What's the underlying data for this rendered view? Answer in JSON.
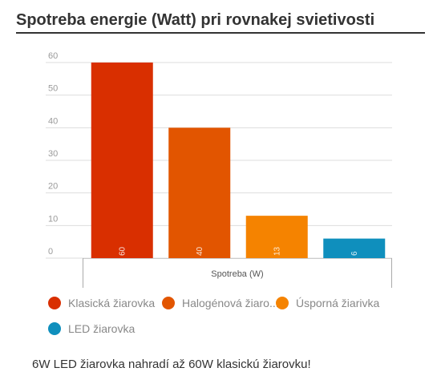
{
  "title": "Spotreba energie (Watt) pri rovnakej svietivosti",
  "chart_data": {
    "type": "bar",
    "categories": [
      "Spotreba (W)"
    ],
    "xlabel": "Spotreba (W)",
    "ylabel": "",
    "ylim": [
      0,
      60
    ],
    "yticks": [
      0,
      10,
      20,
      30,
      40,
      50,
      60
    ],
    "grid": true,
    "legend_position": "bottom",
    "series": [
      {
        "name": "Klasická žiarovka",
        "legend_label": "Klasická žiarovka",
        "value": 60,
        "color": "#d92f00"
      },
      {
        "name": "Halogénová žiarovka",
        "legend_label": "Halogénová žiaro...",
        "value": 40,
        "color": "#e25500"
      },
      {
        "name": "Úsporná žiarivka",
        "legend_label": "Úsporná žiarivka",
        "value": 13,
        "color": "#f58300"
      },
      {
        "name": "LED žiarovka",
        "legend_label": "LED žiarovka",
        "value": 6,
        "color": "#0f8fbd"
      }
    ]
  },
  "caption": "6W LED žiarovka nahradí až 60W klasickú žiarovku!"
}
